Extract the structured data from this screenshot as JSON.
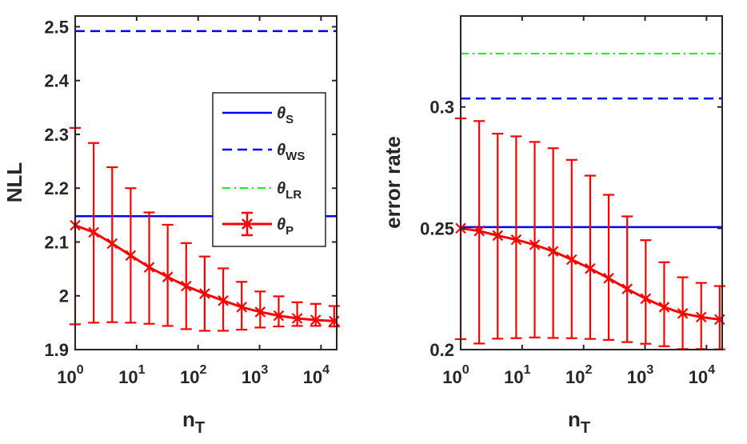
{
  "chart_data": [
    {
      "type": "line",
      "xscale": "log",
      "xlabel": "n",
      "xlabel_sub": "T",
      "ylabel": "NLL",
      "xlim": [
        1,
        18000
      ],
      "ylim": [
        1.9,
        2.52
      ],
      "x": [
        1,
        2,
        4,
        8,
        16,
        32,
        64,
        128,
        256,
        512,
        1024,
        2048,
        4096,
        8192,
        16384
      ],
      "x_tick_exponents": [
        "0",
        "1",
        "2",
        "3",
        "4"
      ],
      "y_ticks": [
        "1.9",
        "2",
        "2.1",
        "2.2",
        "2.3",
        "2.4",
        "2.5"
      ],
      "series": [
        {
          "name": "θS",
          "base": "θ",
          "sub": "S",
          "style": "solid",
          "color": "#0000ff",
          "value": 2.148
        },
        {
          "name": "θWS",
          "base": "θ",
          "sub": "WS",
          "style": "dashed",
          "color": "#0000ff",
          "value": 2.492
        },
        {
          "name": "θP",
          "base": "θ",
          "sub": "P",
          "style": "errorbar",
          "color": "#ff0000",
          "values": [
            2.131,
            2.118,
            2.097,
            2.075,
            2.053,
            2.035,
            2.018,
            2.004,
            1.991,
            1.979,
            1.97,
            1.963,
            1.958,
            1.955,
            1.953
          ],
          "err_low": [
            1.947,
            1.95,
            1.951,
            1.95,
            1.948,
            1.944,
            1.938,
            1.935,
            1.935,
            1.937,
            1.941,
            1.943,
            1.944,
            1.944,
            1.943
          ],
          "err_high": [
            2.312,
            2.284,
            2.239,
            2.2,
            2.155,
            2.132,
            2.098,
            2.073,
            2.051,
            2.026,
            2.008,
            1.999,
            1.988,
            1.985,
            1.981
          ]
        }
      ],
      "legend": {
        "placement": "center-right",
        "entries": [
          {
            "base": "θ",
            "sub": "S",
            "style": "solid",
            "color": "#0000ff"
          },
          {
            "base": "θ",
            "sub": "WS",
            "style": "dashed",
            "color": "#0000ff"
          },
          {
            "base": "θ",
            "sub": "LR",
            "style": "dashdot",
            "color": "#00ff00"
          },
          {
            "base": "θ",
            "sub": "P",
            "style": "errorbar",
            "color": "#ff0000"
          }
        ]
      }
    },
    {
      "type": "line",
      "xscale": "log",
      "xlabel": "n",
      "xlabel_sub": "T",
      "ylabel": "error rate",
      "xlim": [
        1,
        18000
      ],
      "ylim": [
        0.2,
        0.3375
      ],
      "x": [
        1,
        2,
        4,
        8,
        16,
        32,
        64,
        128,
        256,
        512,
        1024,
        2048,
        4096,
        8192,
        16384
      ],
      "x_tick_exponents": [
        "0",
        "1",
        "2",
        "3",
        "4"
      ],
      "y_ticks": [
        "0.2",
        "0.25",
        "0.3"
      ],
      "series": [
        {
          "name": "θS",
          "base": "θ",
          "sub": "S",
          "style": "solid",
          "color": "#0000ff",
          "value": 0.2505
        },
        {
          "name": "θWS",
          "base": "θ",
          "sub": "WS",
          "style": "dashed",
          "color": "#0000ff",
          "value": 0.3035
        },
        {
          "name": "θLR",
          "base": "θ",
          "sub": "LR",
          "style": "dashdot",
          "color": "#00ff00",
          "value": 0.322
        },
        {
          "name": "θP",
          "base": "θ",
          "sub": "P",
          "style": "errorbar",
          "color": "#ff0000",
          "values": [
            0.25,
            0.2489,
            0.247,
            0.2453,
            0.2432,
            0.2405,
            0.2371,
            0.2334,
            0.2294,
            0.225,
            0.221,
            0.2175,
            0.2149,
            0.2134,
            0.2124
          ],
          "err_low": [
            0.2043,
            0.2025,
            0.2045,
            0.2047,
            0.205,
            0.2048,
            0.2047,
            0.2044,
            0.204,
            0.2031,
            0.2024,
            0.2014,
            0.2002,
            0.2002,
            0.2001
          ],
          "err_high": [
            0.2953,
            0.2942,
            0.289,
            0.2879,
            0.2856,
            0.283,
            0.2782,
            0.2717,
            0.2638,
            0.2549,
            0.2451,
            0.236,
            0.2298,
            0.2275,
            0.2262
          ]
        }
      ]
    }
  ]
}
